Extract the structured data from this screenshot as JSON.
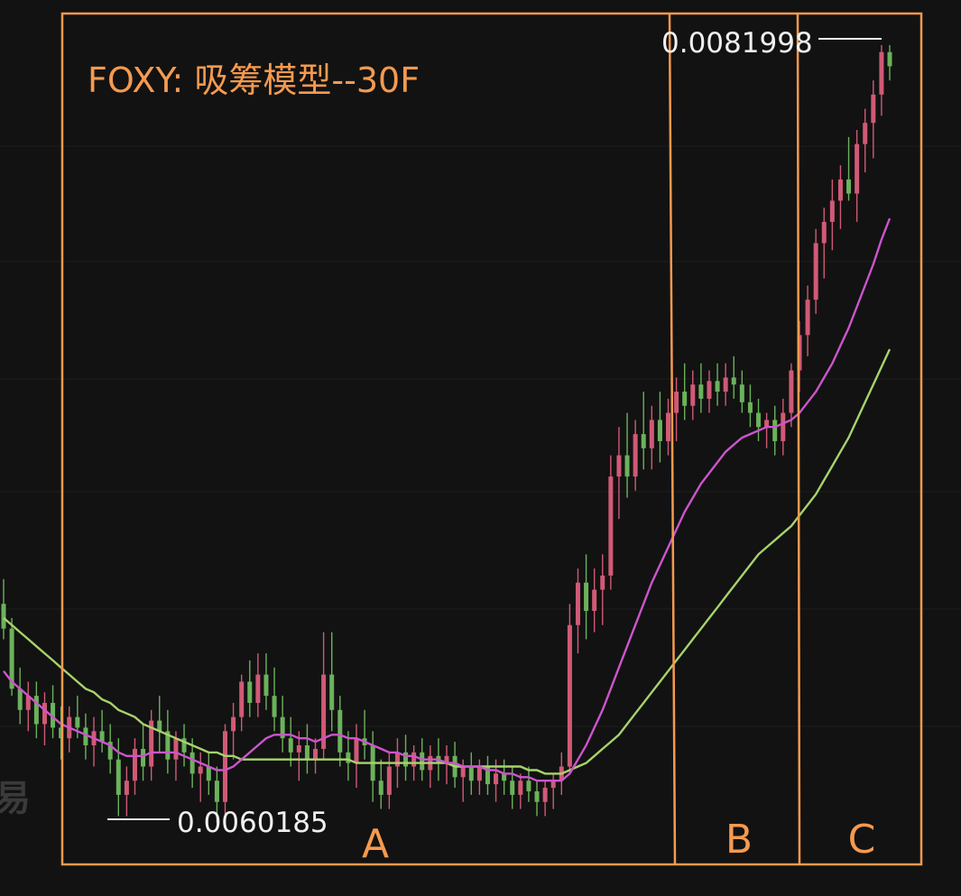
{
  "chart_data": {
    "type": "candlestick",
    "title": "FOXY: 吸筹模型--30F",
    "price_high_label": "0.0081998",
    "price_low_label": "0.0060185",
    "price_high": 0.0081998,
    "price_low": 0.0060185,
    "zones": [
      "A",
      "B",
      "C"
    ],
    "watermark": "易",
    "grid": true,
    "colors": {
      "up": "#d05a76",
      "down": "#6bb25b",
      "ma_fast": "#cc55cc",
      "ma_slow": "#a7d36b",
      "annotation": "#f59a4f",
      "background": "#121212"
    },
    "candles": [
      [
        0.00662,
        0.00669,
        0.00652,
        0.00655
      ],
      [
        0.00655,
        0.00658,
        0.00636,
        0.00638
      ],
      [
        0.00638,
        0.00644,
        0.00628,
        0.00632
      ],
      [
        0.00632,
        0.0064,
        0.00626,
        0.00636
      ],
      [
        0.00636,
        0.0064,
        0.00624,
        0.00628
      ],
      [
        0.00628,
        0.00637,
        0.00622,
        0.00634
      ],
      [
        0.00634,
        0.00639,
        0.00624,
        0.00627
      ],
      [
        0.00627,
        0.00633,
        0.00618,
        0.00624
      ],
      [
        0.00624,
        0.00633,
        0.0062,
        0.0063
      ],
      [
        0.0063,
        0.00636,
        0.00624,
        0.00627
      ],
      [
        0.00627,
        0.00631,
        0.00618,
        0.00622
      ],
      [
        0.00622,
        0.0063,
        0.00616,
        0.00626
      ],
      [
        0.00626,
        0.00632,
        0.0062,
        0.00623
      ],
      [
        0.00623,
        0.00628,
        0.00614,
        0.00618
      ],
      [
        0.00618,
        0.00624,
        0.00602,
        0.00608
      ],
      [
        0.00608,
        0.00616,
        0.00602,
        0.00612
      ],
      [
        0.00612,
        0.00624,
        0.00608,
        0.00621
      ],
      [
        0.00621,
        0.00628,
        0.00612,
        0.00616
      ],
      [
        0.00616,
        0.00632,
        0.00612,
        0.00629
      ],
      [
        0.00629,
        0.00636,
        0.0062,
        0.00626
      ],
      [
        0.00626,
        0.00632,
        0.00614,
        0.00618
      ],
      [
        0.00618,
        0.00626,
        0.00612,
        0.00624
      ],
      [
        0.00624,
        0.00628,
        0.00616,
        0.0062
      ],
      [
        0.0062,
        0.00624,
        0.0061,
        0.00614
      ],
      [
        0.00614,
        0.0062,
        0.00606,
        0.00616
      ],
      [
        0.00616,
        0.0062,
        0.00608,
        0.00612
      ],
      [
        0.00612,
        0.00616,
        0.006,
        0.00606
      ],
      [
        0.00606,
        0.00628,
        0.00602,
        0.00626
      ],
      [
        0.00626,
        0.00634,
        0.00618,
        0.0063
      ],
      [
        0.0063,
        0.00642,
        0.00626,
        0.0064
      ],
      [
        0.0064,
        0.00646,
        0.0063,
        0.00634
      ],
      [
        0.00634,
        0.00648,
        0.0063,
        0.00642
      ],
      [
        0.00642,
        0.00648,
        0.00632,
        0.00636
      ],
      [
        0.00636,
        0.00644,
        0.00626,
        0.0063
      ],
      [
        0.0063,
        0.00636,
        0.0062,
        0.00624
      ],
      [
        0.00624,
        0.0063,
        0.00616,
        0.0062
      ],
      [
        0.0062,
        0.00626,
        0.00612,
        0.00622
      ],
      [
        0.00622,
        0.00628,
        0.00614,
        0.00618
      ],
      [
        0.00618,
        0.00624,
        0.00614,
        0.00621
      ],
      [
        0.00621,
        0.00654,
        0.00618,
        0.00642
      ],
      [
        0.00642,
        0.00654,
        0.00626,
        0.00632
      ],
      [
        0.00632,
        0.00636,
        0.00616,
        0.0062
      ],
      [
        0.0062,
        0.00626,
        0.00612,
        0.00617
      ],
      [
        0.00617,
        0.00628,
        0.0061,
        0.00624
      ],
      [
        0.00624,
        0.00632,
        0.00618,
        0.00622
      ],
      [
        0.00622,
        0.00626,
        0.00606,
        0.00612
      ],
      [
        0.00612,
        0.00618,
        0.00604,
        0.00608
      ],
      [
        0.00608,
        0.0062,
        0.00604,
        0.00616
      ],
      [
        0.00616,
        0.00624,
        0.0061,
        0.0062
      ],
      [
        0.0062,
        0.00625,
        0.00612,
        0.00616
      ],
      [
        0.00616,
        0.00622,
        0.00612,
        0.0062
      ],
      [
        0.0062,
        0.00624,
        0.00612,
        0.00615
      ],
      [
        0.00615,
        0.00622,
        0.0061,
        0.00619
      ],
      [
        0.00619,
        0.00624,
        0.00612,
        0.00617
      ],
      [
        0.00617,
        0.00622,
        0.00611,
        0.00619
      ],
      [
        0.00619,
        0.00623,
        0.0061,
        0.00613
      ],
      [
        0.00613,
        0.00618,
        0.00606,
        0.00616
      ],
      [
        0.00616,
        0.0062,
        0.00608,
        0.00612
      ],
      [
        0.00612,
        0.00618,
        0.00608,
        0.00616
      ],
      [
        0.00616,
        0.00619,
        0.00608,
        0.00611
      ],
      [
        0.00611,
        0.00618,
        0.00606,
        0.00614
      ],
      [
        0.00614,
        0.00618,
        0.00608,
        0.00612
      ],
      [
        0.00612,
        0.00616,
        0.00604,
        0.00608
      ],
      [
        0.00608,
        0.00614,
        0.00604,
        0.00612
      ],
      [
        0.00612,
        0.00616,
        0.00606,
        0.00609
      ],
      [
        0.00609,
        0.00612,
        0.00602,
        0.00606
      ],
      [
        0.00606,
        0.00612,
        0.00602,
        0.0061
      ],
      [
        0.0061,
        0.00614,
        0.00604,
        0.00612
      ],
      [
        0.00612,
        0.0062,
        0.00608,
        0.00616
      ],
      [
        0.00616,
        0.00662,
        0.00614,
        0.00656
      ],
      [
        0.00656,
        0.00672,
        0.00648,
        0.00668
      ],
      [
        0.00668,
        0.00676,
        0.00652,
        0.0066
      ],
      [
        0.0066,
        0.00672,
        0.00654,
        0.00666
      ],
      [
        0.00666,
        0.00676,
        0.00656,
        0.0067
      ],
      [
        0.0067,
        0.00704,
        0.00666,
        0.00698
      ],
      [
        0.00698,
        0.00712,
        0.00686,
        0.00704
      ],
      [
        0.00704,
        0.00716,
        0.00692,
        0.00698
      ],
      [
        0.00698,
        0.00714,
        0.00694,
        0.0071
      ],
      [
        0.0071,
        0.00722,
        0.007,
        0.00706
      ],
      [
        0.00706,
        0.00718,
        0.007,
        0.00714
      ],
      [
        0.00714,
        0.00722,
        0.00702,
        0.00708
      ],
      [
        0.00708,
        0.0072,
        0.00704,
        0.00716
      ],
      [
        0.00716,
        0.00726,
        0.00708,
        0.00722
      ],
      [
        0.00722,
        0.0073,
        0.00714,
        0.00718
      ],
      [
        0.00718,
        0.00728,
        0.00714,
        0.00724
      ],
      [
        0.00724,
        0.0073,
        0.00716,
        0.0072
      ],
      [
        0.0072,
        0.00728,
        0.00716,
        0.00725
      ],
      [
        0.00725,
        0.0073,
        0.00718,
        0.00722
      ],
      [
        0.00722,
        0.0073,
        0.00718,
        0.00726
      ],
      [
        0.00726,
        0.00732,
        0.0072,
        0.00724
      ],
      [
        0.00724,
        0.00728,
        0.00716,
        0.00719
      ],
      [
        0.00719,
        0.00724,
        0.00712,
        0.00716
      ],
      [
        0.00716,
        0.0072,
        0.00708,
        0.00712
      ],
      [
        0.00712,
        0.00716,
        0.00706,
        0.00714
      ],
      [
        0.00714,
        0.00718,
        0.00704,
        0.00708
      ],
      [
        0.00708,
        0.0072,
        0.00704,
        0.00716
      ],
      [
        0.00716,
        0.0073,
        0.00712,
        0.00728
      ],
      [
        0.00728,
        0.00742,
        0.00722,
        0.00738
      ],
      [
        0.00738,
        0.00752,
        0.00732,
        0.00748
      ],
      [
        0.00748,
        0.00768,
        0.00744,
        0.00764
      ],
      [
        0.00764,
        0.00774,
        0.00754,
        0.0077
      ],
      [
        0.0077,
        0.00782,
        0.00762,
        0.00776
      ],
      [
        0.00776,
        0.00786,
        0.00768,
        0.00782
      ],
      [
        0.00782,
        0.00794,
        0.00776,
        0.00778
      ],
      [
        0.00778,
        0.00796,
        0.0077,
        0.00792
      ],
      [
        0.00792,
        0.00802,
        0.00784,
        0.00798
      ],
      [
        0.00798,
        0.0081,
        0.00788,
        0.00806
      ],
      [
        0.00806,
        0.0082,
        0.008,
        0.00818
      ],
      [
        0.00818,
        0.0082,
        0.0081,
        0.00814
      ]
    ],
    "ma_fast": [
      0.00643,
      0.0064,
      0.00638,
      0.00636,
      0.00634,
      0.00632,
      0.0063,
      0.00628,
      0.00627,
      0.00626,
      0.00625,
      0.00624,
      0.00623,
      0.00622,
      0.0062,
      0.00619,
      0.00619,
      0.00619,
      0.0062,
      0.0062,
      0.0062,
      0.0062,
      0.00619,
      0.00618,
      0.00617,
      0.00616,
      0.00615,
      0.00615,
      0.00616,
      0.00618,
      0.0062,
      0.00622,
      0.00624,
      0.00625,
      0.00625,
      0.00625,
      0.00624,
      0.00624,
      0.00623,
      0.00624,
      0.00625,
      0.00625,
      0.00624,
      0.00624,
      0.00623,
      0.00622,
      0.00621,
      0.0062,
      0.0062,
      0.00619,
      0.00619,
      0.00618,
      0.00618,
      0.00618,
      0.00617,
      0.00617,
      0.00616,
      0.00616,
      0.00616,
      0.00615,
      0.00615,
      0.00614,
      0.00614,
      0.00613,
      0.00613,
      0.00612,
      0.00612,
      0.00612,
      0.00612,
      0.00614,
      0.00618,
      0.00622,
      0.00627,
      0.00632,
      0.00638,
      0.00644,
      0.0065,
      0.00656,
      0.00662,
      0.00668,
      0.00673,
      0.00678,
      0.00683,
      0.00688,
      0.00692,
      0.00696,
      0.00699,
      0.00702,
      0.00705,
      0.00707,
      0.00709,
      0.0071,
      0.00711,
      0.00712,
      0.00712,
      0.00713,
      0.00714,
      0.00716,
      0.00719,
      0.00722,
      0.00726,
      0.0073,
      0.00735,
      0.0074,
      0.00746,
      0.00752,
      0.00758,
      0.00765,
      0.00771
    ],
    "ma_slow": [
      0.00658,
      0.00656,
      0.00654,
      0.00652,
      0.0065,
      0.00648,
      0.00646,
      0.00644,
      0.00642,
      0.0064,
      0.00638,
      0.00637,
      0.00635,
      0.00634,
      0.00632,
      0.00631,
      0.0063,
      0.00628,
      0.00627,
      0.00626,
      0.00625,
      0.00624,
      0.00623,
      0.00622,
      0.00621,
      0.0062,
      0.0062,
      0.00619,
      0.00619,
      0.00618,
      0.00618,
      0.00618,
      0.00618,
      0.00618,
      0.00618,
      0.00618,
      0.00618,
      0.00618,
      0.00618,
      0.00618,
      0.00618,
      0.00618,
      0.00618,
      0.00617,
      0.00617,
      0.00617,
      0.00617,
      0.00617,
      0.00617,
      0.00617,
      0.00617,
      0.00617,
      0.00617,
      0.00617,
      0.00617,
      0.00616,
      0.00616,
      0.00616,
      0.00616,
      0.00616,
      0.00616,
      0.00616,
      0.00616,
      0.00616,
      0.00615,
      0.00615,
      0.00614,
      0.00614,
      0.00614,
      0.00615,
      0.00616,
      0.00617,
      0.00619,
      0.00621,
      0.00623,
      0.00625,
      0.00628,
      0.00631,
      0.00634,
      0.00637,
      0.0064,
      0.00643,
      0.00646,
      0.00649,
      0.00652,
      0.00655,
      0.00658,
      0.00661,
      0.00664,
      0.00667,
      0.0067,
      0.00673,
      0.00676,
      0.00678,
      0.0068,
      0.00682,
      0.00684,
      0.00687,
      0.0069,
      0.00693,
      0.00697,
      0.00701,
      0.00705,
      0.00709,
      0.00714,
      0.00719,
      0.00724,
      0.00729,
      0.00734
    ]
  }
}
